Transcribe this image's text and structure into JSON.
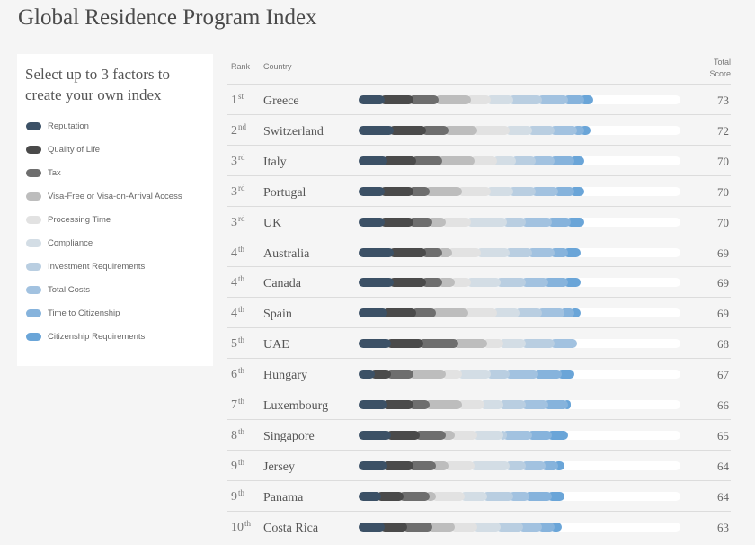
{
  "page_title": "Global Residence Program Index",
  "factor_panel": {
    "heading": "Select up to 3 factors to create your own index",
    "factors": [
      {
        "label": "Reputation",
        "color": "#3c5166"
      },
      {
        "label": "Quality of Life",
        "color": "#4a4a4a"
      },
      {
        "label": "Tax",
        "color": "#6e6e6e"
      },
      {
        "label": "Visa-Free or Visa-on-Arrival Access",
        "color": "#bdbdbd"
      },
      {
        "label": "Processing Time",
        "color": "#e2e2e2"
      },
      {
        "label": "Compliance",
        "color": "#d3dde5"
      },
      {
        "label": "Investment Requirements",
        "color": "#b9cee1"
      },
      {
        "label": "Total Costs",
        "color": "#a2c2e0"
      },
      {
        "label": "Time to Citizenship",
        "color": "#86b3dc"
      },
      {
        "label": "Citizenship Requirements",
        "color": "#6aa5d8"
      }
    ]
  },
  "table": {
    "header_rank": "Rank",
    "header_country": "Country",
    "header_total_line1": "Total",
    "header_total_line2": "Score"
  },
  "chart_data": {
    "type": "bar",
    "stacked": true,
    "orientation": "horizontal",
    "title": "Global Residence Program Index",
    "xlim": [
      0,
      100
    ],
    "series_names": [
      "Reputation",
      "Quality of Life",
      "Tax",
      "Visa-Free or Visa-on-Arrival Access",
      "Processing Time",
      "Compliance",
      "Investment Requirements",
      "Total Costs",
      "Time to Citizenship",
      "Citizenship Requirements"
    ],
    "rows": [
      {
        "rank": "1",
        "suffix": "st",
        "country": "Greece",
        "total": 73,
        "segments": [
          8,
          9,
          8,
          10,
          6,
          7,
          9,
          8,
          5,
          3
        ]
      },
      {
        "rank": "2",
        "suffix": "nd",
        "country": "Switzerland",
        "total": 72,
        "segments": [
          11,
          10,
          7,
          9,
          10,
          7,
          7,
          7,
          2,
          2
        ]
      },
      {
        "rank": "3",
        "suffix": "rd",
        "country": "Italy",
        "total": 70,
        "segments": [
          9,
          9,
          8,
          10,
          7,
          6,
          6,
          6,
          6,
          3
        ]
      },
      {
        "rank": "3",
        "suffix": "rd",
        "country": "Portugal",
        "total": 70,
        "segments": [
          8,
          9,
          5,
          10,
          9,
          7,
          7,
          7,
          5,
          3
        ]
      },
      {
        "rank": "3",
        "suffix": "rd",
        "country": "UK",
        "total": 70,
        "segments": [
          8,
          9,
          6,
          4,
          8,
          11,
          6,
          8,
          6,
          4
        ]
      },
      {
        "rank": "4",
        "suffix": "th",
        "country": "Australia",
        "total": 69,
        "segments": [
          11,
          10,
          5,
          3,
          9,
          9,
          7,
          7,
          4,
          4
        ]
      },
      {
        "rank": "4",
        "suffix": "th",
        "country": "Canada",
        "total": 69,
        "segments": [
          11,
          10,
          5,
          4,
          5,
          9,
          8,
          7,
          6,
          4
        ]
      },
      {
        "rank": "4",
        "suffix": "th",
        "country": "Spain",
        "total": 69,
        "segments": [
          9,
          9,
          6,
          10,
          9,
          7,
          7,
          7,
          3,
          2
        ]
      },
      {
        "rank": "5",
        "suffix": "th",
        "country": "UAE",
        "total": 68,
        "segments": [
          10,
          10,
          11,
          9,
          5,
          7,
          9,
          7,
          0,
          0
        ]
      },
      {
        "rank": "6",
        "suffix": "th",
        "country": "Hungary",
        "total": 67,
        "segments": [
          5,
          5,
          7,
          10,
          5,
          9,
          6,
          9,
          7,
          4
        ]
      },
      {
        "rank": "7",
        "suffix": "th",
        "country": "Luxembourg",
        "total": 66,
        "segments": [
          9,
          8,
          5,
          10,
          7,
          6,
          7,
          7,
          6,
          1
        ]
      },
      {
        "rank": "8",
        "suffix": "th",
        "country": "Singapore",
        "total": 65,
        "segments": [
          10,
          9,
          8,
          3,
          7,
          8,
          1,
          8,
          6,
          5
        ]
      },
      {
        "rank": "9",
        "suffix": "th",
        "country": "Jersey",
        "total": 64,
        "segments": [
          9,
          8,
          7,
          4,
          8,
          11,
          5,
          6,
          4,
          2
        ]
      },
      {
        "rank": "9",
        "suffix": "th",
        "country": "Panama",
        "total": 64,
        "segments": [
          7,
          7,
          8,
          2,
          9,
          7,
          8,
          5,
          7,
          4
        ]
      },
      {
        "rank": "10",
        "suffix": "th",
        "country": "Costa Rica",
        "total": 63,
        "segments": [
          8,
          7,
          8,
          7,
          7,
          7,
          7,
          6,
          4,
          2
        ]
      }
    ]
  }
}
